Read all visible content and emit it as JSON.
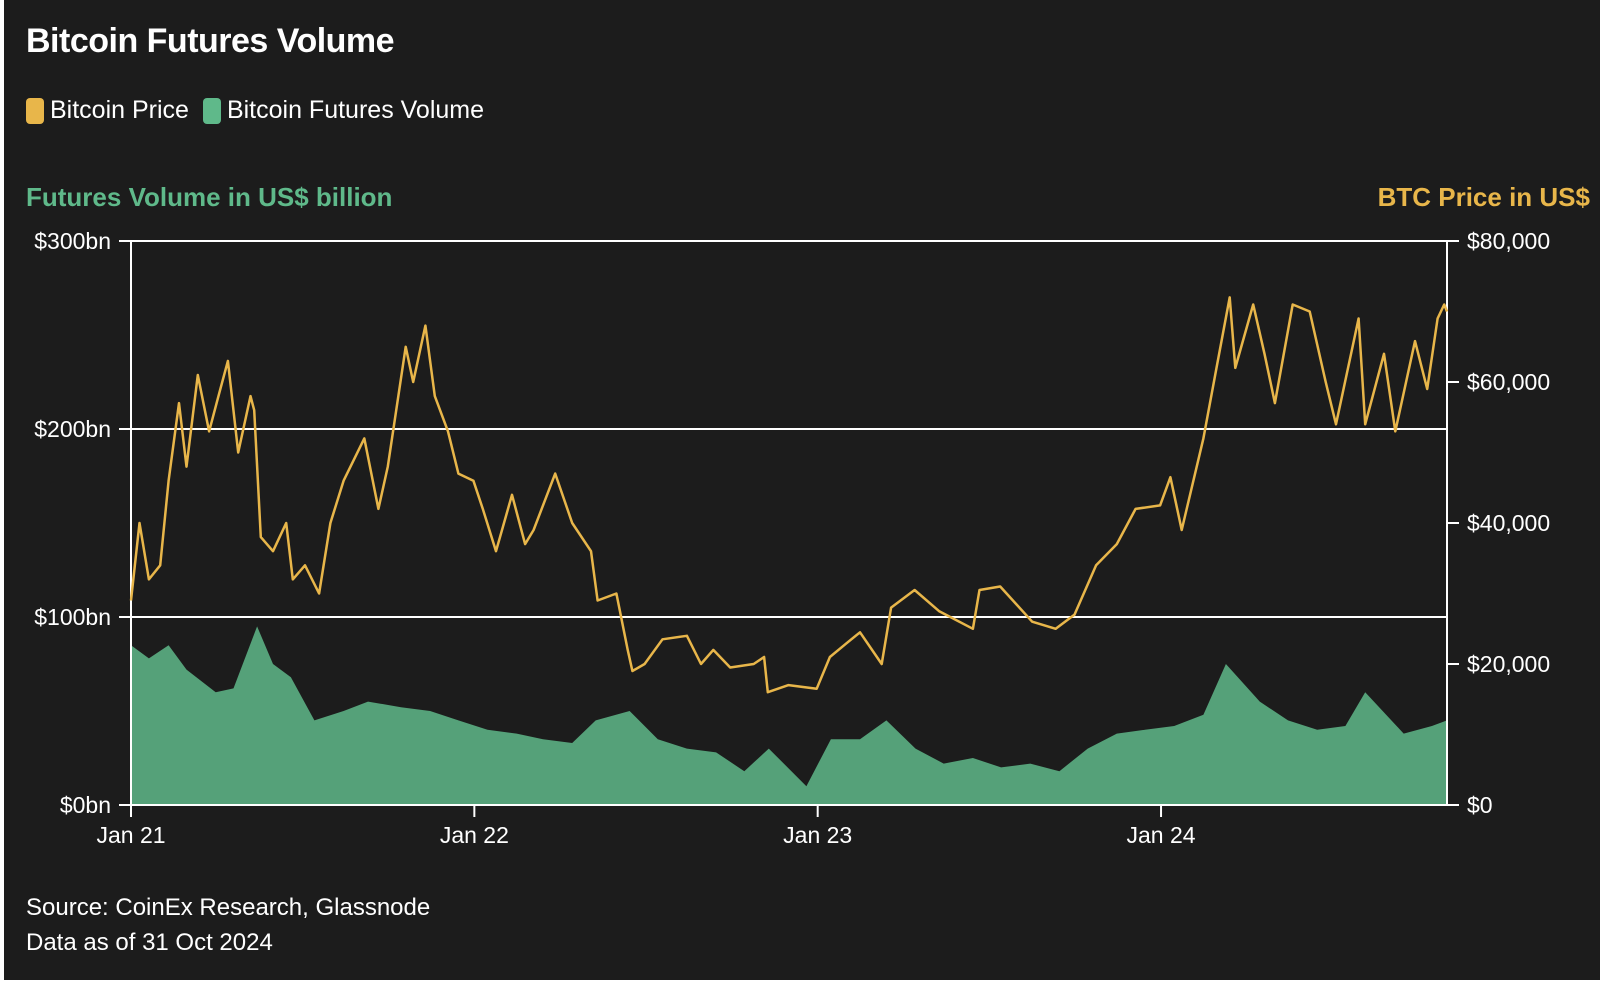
{
  "chart_data": {
    "type": "area",
    "title": "Bitcoin Futures Volume",
    "legend": [
      {
        "name": "Bitcoin Price",
        "color": "#e8b64a"
      },
      {
        "name": "Bitcoin Futures Volume",
        "color": "#5fb98a"
      }
    ],
    "legend_position": "top-left",
    "y_left": {
      "label": "Futures Volume in US$ billion",
      "ticks": [
        "$0bn",
        "$100bn",
        "$200bn",
        "$300bn"
      ],
      "tick_values": [
        0,
        100,
        200,
        300
      ],
      "range": [
        0,
        300
      ],
      "color": "#5fb98a"
    },
    "y_right": {
      "label": "BTC Price in US$",
      "ticks": [
        "$0",
        "$20,000",
        "$40,000",
        "$60,000",
        "$80,000"
      ],
      "tick_values": [
        0,
        20000,
        40000,
        60000,
        80000
      ],
      "range": [
        0,
        80000
      ],
      "color": "#e8b64a"
    },
    "x": {
      "ticks": [
        "Jan 21",
        "Jan 22",
        "Jan 23",
        "Jan 24"
      ],
      "tick_values": [
        "2021-01-01",
        "2022-01-01",
        "2023-01-01",
        "2024-01-01"
      ],
      "range": [
        "2021-01-01",
        "2024-10-31"
      ]
    },
    "gridlines": [
      100,
      200,
      300
    ],
    "series": [
      {
        "name": "Bitcoin Price",
        "axis": "right",
        "points": [
          [
            "2021-01-01",
            29000
          ],
          [
            "2021-01-10",
            40000
          ],
          [
            "2021-01-20",
            32000
          ],
          [
            "2021-02-01",
            34000
          ],
          [
            "2021-02-10",
            46000
          ],
          [
            "2021-02-21",
            57000
          ],
          [
            "2021-03-01",
            48000
          ],
          [
            "2021-03-13",
            61000
          ],
          [
            "2021-03-25",
            53000
          ],
          [
            "2021-04-05",
            58500
          ],
          [
            "2021-04-14",
            63000
          ],
          [
            "2021-04-25",
            50000
          ],
          [
            "2021-05-08",
            58000
          ],
          [
            "2021-05-12",
            56000
          ],
          [
            "2021-05-19",
            38000
          ],
          [
            "2021-06-01",
            36000
          ],
          [
            "2021-06-15",
            40000
          ],
          [
            "2021-06-22",
            32000
          ],
          [
            "2021-07-05",
            34000
          ],
          [
            "2021-07-20",
            30000
          ],
          [
            "2021-08-01",
            40000
          ],
          [
            "2021-08-15",
            46000
          ],
          [
            "2021-09-06",
            52000
          ],
          [
            "2021-09-21",
            42000
          ],
          [
            "2021-10-01",
            48000
          ],
          [
            "2021-10-20",
            65000
          ],
          [
            "2021-10-28",
            60000
          ],
          [
            "2021-11-10",
            68000
          ],
          [
            "2021-11-20",
            58000
          ],
          [
            "2021-12-04",
            53000
          ],
          [
            "2021-12-15",
            47000
          ],
          [
            "2021-12-31",
            46000
          ],
          [
            "2022-01-10",
            42000
          ],
          [
            "2022-01-24",
            36000
          ],
          [
            "2022-02-10",
            44000
          ],
          [
            "2022-02-24",
            37000
          ],
          [
            "2022-03-05",
            39000
          ],
          [
            "2022-03-28",
            47000
          ],
          [
            "2022-04-15",
            40000
          ],
          [
            "2022-05-05",
            36000
          ],
          [
            "2022-05-12",
            29000
          ],
          [
            "2022-06-01",
            30000
          ],
          [
            "2022-06-13",
            22000
          ],
          [
            "2022-06-18",
            19000
          ],
          [
            "2022-07-01",
            20000
          ],
          [
            "2022-07-20",
            23500
          ],
          [
            "2022-08-15",
            24000
          ],
          [
            "2022-08-30",
            20000
          ],
          [
            "2022-09-12",
            22000
          ],
          [
            "2022-09-30",
            19500
          ],
          [
            "2022-10-25",
            20000
          ],
          [
            "2022-11-05",
            21000
          ],
          [
            "2022-11-09",
            16000
          ],
          [
            "2022-12-01",
            17000
          ],
          [
            "2022-12-31",
            16500
          ],
          [
            "2023-01-14",
            21000
          ],
          [
            "2023-02-01",
            23000
          ],
          [
            "2023-02-15",
            24500
          ],
          [
            "2023-03-10",
            20000
          ],
          [
            "2023-03-20",
            28000
          ],
          [
            "2023-04-14",
            30500
          ],
          [
            "2023-05-10",
            27500
          ],
          [
            "2023-06-15",
            25000
          ],
          [
            "2023-06-22",
            30500
          ],
          [
            "2023-07-14",
            31000
          ],
          [
            "2023-08-17",
            26000
          ],
          [
            "2023-09-11",
            25000
          ],
          [
            "2023-10-01",
            27000
          ],
          [
            "2023-10-24",
            34000
          ],
          [
            "2023-11-15",
            37000
          ],
          [
            "2023-12-05",
            42000
          ],
          [
            "2023-12-31",
            42500
          ],
          [
            "2024-01-11",
            46500
          ],
          [
            "2024-01-23",
            39000
          ],
          [
            "2024-02-15",
            52000
          ],
          [
            "2024-02-29",
            62000
          ],
          [
            "2024-03-14",
            72000
          ],
          [
            "2024-03-20",
            62000
          ],
          [
            "2024-04-08",
            71000
          ],
          [
            "2024-04-20",
            64000
          ],
          [
            "2024-05-01",
            57000
          ],
          [
            "2024-05-20",
            71000
          ],
          [
            "2024-06-07",
            70000
          ],
          [
            "2024-06-24",
            60000
          ],
          [
            "2024-07-05",
            54000
          ],
          [
            "2024-07-29",
            69000
          ],
          [
            "2024-08-05",
            54000
          ],
          [
            "2024-08-25",
            64000
          ],
          [
            "2024-09-06",
            53000
          ],
          [
            "2024-09-27",
            65800
          ],
          [
            "2024-10-10",
            59000
          ],
          [
            "2024-10-21",
            69000
          ],
          [
            "2024-10-28",
            71000
          ],
          [
            "2024-10-31",
            70000
          ]
        ]
      },
      {
        "name": "Bitcoin Futures Volume",
        "axis": "left",
        "points": [
          [
            "2021-01-01",
            85
          ],
          [
            "2021-01-20",
            78
          ],
          [
            "2021-02-10",
            85
          ],
          [
            "2021-03-01",
            72
          ],
          [
            "2021-04-01",
            60
          ],
          [
            "2021-04-20",
            62
          ],
          [
            "2021-05-15",
            95
          ],
          [
            "2021-06-01",
            75
          ],
          [
            "2021-06-20",
            68
          ],
          [
            "2021-07-15",
            45
          ],
          [
            "2021-08-15",
            50
          ],
          [
            "2021-09-10",
            55
          ],
          [
            "2021-10-15",
            52
          ],
          [
            "2021-11-15",
            50
          ],
          [
            "2021-12-15",
            45
          ],
          [
            "2022-01-15",
            40
          ],
          [
            "2022-02-15",
            38
          ],
          [
            "2022-03-15",
            35
          ],
          [
            "2022-04-15",
            33
          ],
          [
            "2022-05-10",
            45
          ],
          [
            "2022-06-15",
            50
          ],
          [
            "2022-07-15",
            35
          ],
          [
            "2022-08-15",
            30
          ],
          [
            "2022-09-15",
            28
          ],
          [
            "2022-10-15",
            18
          ],
          [
            "2022-11-10",
            30
          ],
          [
            "2022-12-20",
            10
          ],
          [
            "2023-01-15",
            35
          ],
          [
            "2023-02-15",
            35
          ],
          [
            "2023-03-15",
            45
          ],
          [
            "2023-04-15",
            30
          ],
          [
            "2023-05-15",
            22
          ],
          [
            "2023-06-15",
            25
          ],
          [
            "2023-07-15",
            20
          ],
          [
            "2023-08-15",
            22
          ],
          [
            "2023-09-15",
            18
          ],
          [
            "2023-10-15",
            30
          ],
          [
            "2023-11-15",
            38
          ],
          [
            "2023-12-15",
            40
          ],
          [
            "2024-01-15",
            42
          ],
          [
            "2024-02-15",
            48
          ],
          [
            "2024-03-10",
            75
          ],
          [
            "2024-04-15",
            55
          ],
          [
            "2024-05-15",
            45
          ],
          [
            "2024-06-15",
            40
          ],
          [
            "2024-07-15",
            42
          ],
          [
            "2024-08-05",
            60
          ],
          [
            "2024-09-15",
            38
          ],
          [
            "2024-10-15",
            42
          ],
          [
            "2024-10-31",
            45
          ]
        ]
      }
    ],
    "annotations": []
  },
  "footer": {
    "source": "Source: CoinEx Research, Glassnode",
    "date_note": "Data as of 31 Oct 2024"
  }
}
